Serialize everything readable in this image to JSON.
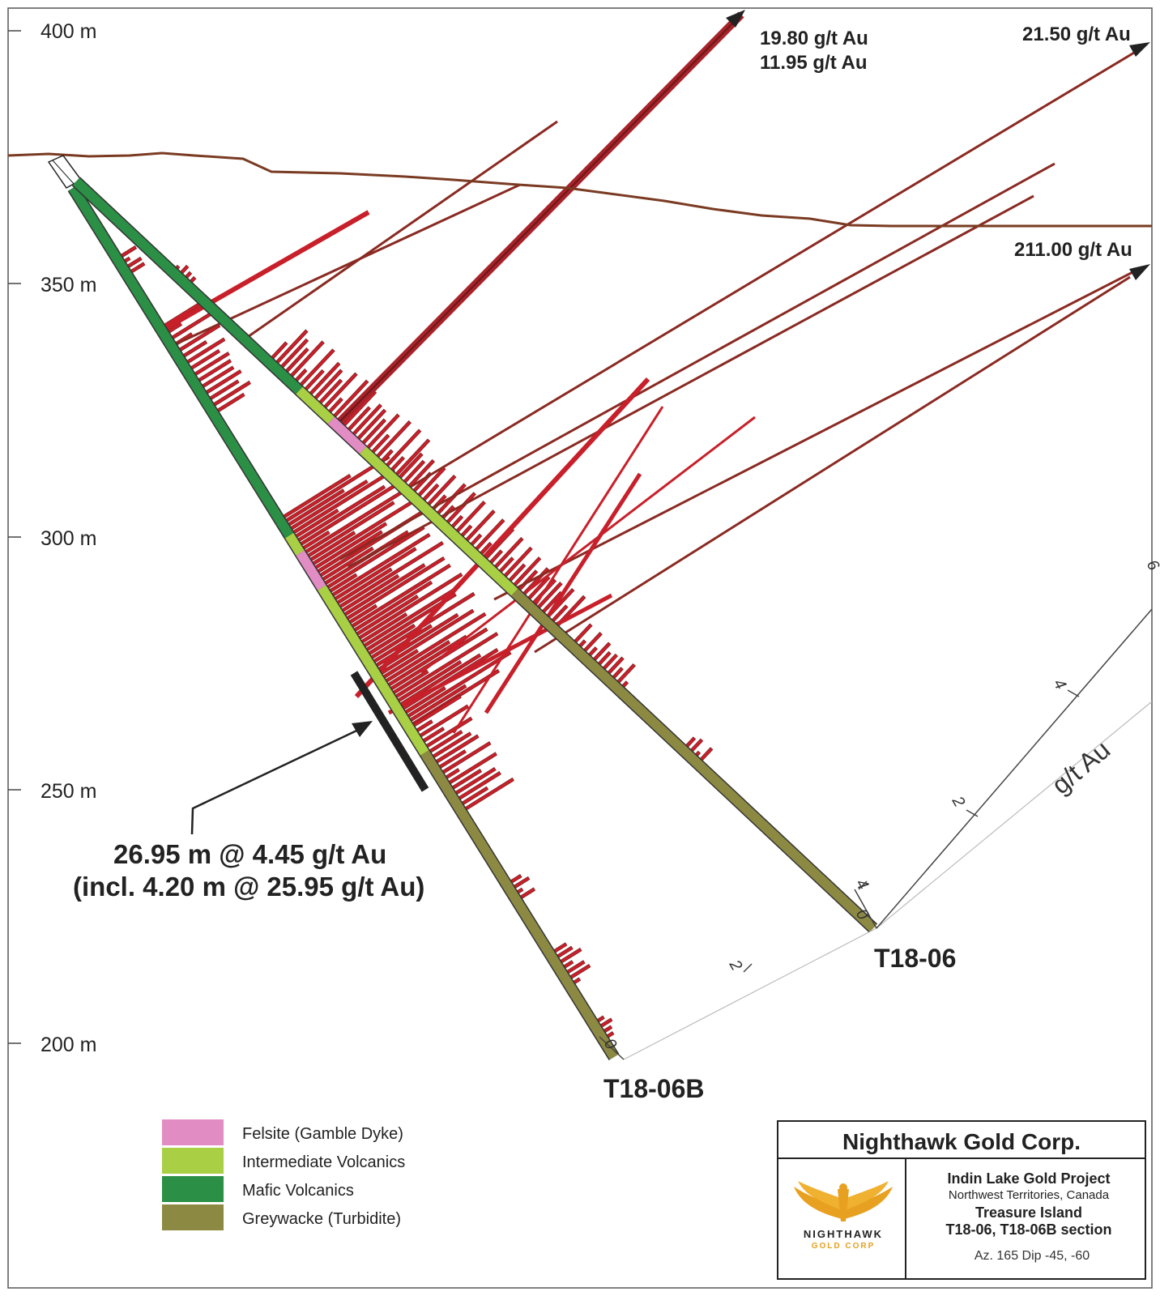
{
  "depth_axis": {
    "labels": [
      "400 m",
      "350 m",
      "300 m",
      "250 m",
      "200 m"
    ]
  },
  "grade_callouts": {
    "upper_1": "19.80 g/t Au",
    "upper_2": "11.95 g/t Au",
    "right_top": "21.50 g/t Au",
    "right_mid": "211.00 g/t Au"
  },
  "interval_annotation": {
    "line1": "26.95 m @ 4.45 g/t Au",
    "line2": "(incl. 4.20 m @ 25.95 g/t Au)"
  },
  "holes": {
    "t18_06": "T18-06",
    "t18_06b": "T18-06B"
  },
  "grade_scale": {
    "unit": "g/t Au",
    "tick_0": "0",
    "tick_2": "2",
    "tick_4": "4",
    "tick_6": "6"
  },
  "legend": {
    "items": [
      {
        "label": "Felsite (Gamble Dyke)",
        "color": "#e28cc4"
      },
      {
        "label": "Intermediate Volcanics",
        "color": "#a9cf44"
      },
      {
        "label": "Mafic Volcanics",
        "color": "#2b8f46"
      },
      {
        "label": "Greywacke (Turbidite)",
        "color": "#8c8a42"
      }
    ]
  },
  "title_block": {
    "company": "Nighthawk Gold Corp.",
    "project": "Indin Lake Gold Project",
    "region": "Northwest Territories, Canada",
    "section": "Treasure Island",
    "section2": "T18-06, T18-06B section",
    "azdip": "Az. 165  Dip -45, -60",
    "logo_word": "NIGHTHAWK",
    "logo_sub": "GOLD CORP"
  },
  "colors": {
    "assay_red": "#c8202a",
    "assay_dark": "#6a1818",
    "topography": "#7a3b22",
    "felsite": "#e28cc4",
    "intermediate": "#a9cf44",
    "mafic": "#2b8f46",
    "greywacke": "#8c8a42",
    "logo_gold": "#e8a020"
  }
}
